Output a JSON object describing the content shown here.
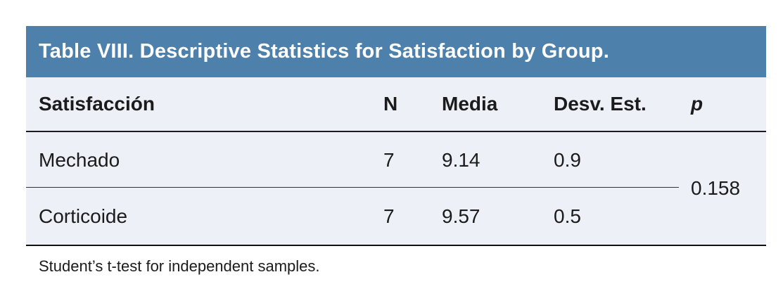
{
  "table": {
    "title": "Table VIII. Descriptive Statistics for Satisfaction by Group.",
    "columns": {
      "label": "Satisfacción",
      "n": "N",
      "media": "Media",
      "desv": "Desv. Est.",
      "p": "p"
    },
    "rows": [
      {
        "label": "Mechado",
        "n": "7",
        "media": "9.14",
        "desv": "0.9"
      },
      {
        "label": "Corticoide",
        "n": "7",
        "media": "9.57",
        "desv": "0.5"
      }
    ],
    "p_value": "0.158",
    "footnote": "Student’s t-test for independent samples."
  },
  "colors": {
    "title_bar_bg": "#4e80ac",
    "title_text": "#ffffff",
    "body_bg": "#edf0f7",
    "text": "#1b1b1b",
    "rule_heavy": "#101010",
    "rule_light": "#333333"
  }
}
